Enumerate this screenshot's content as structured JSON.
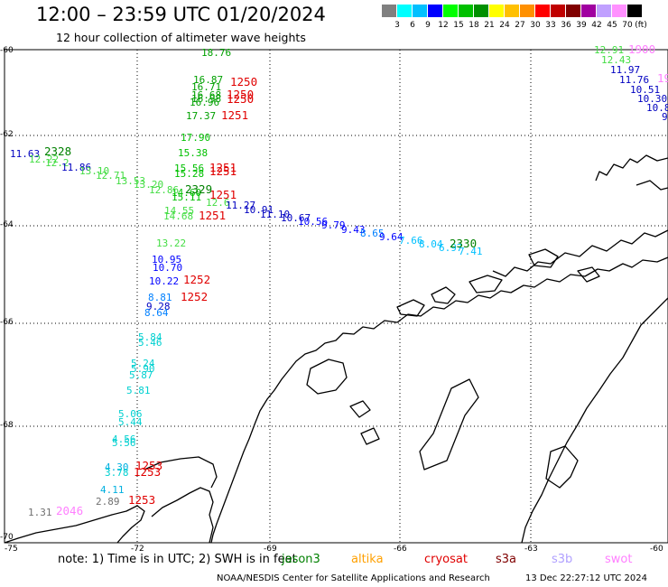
{
  "title": "12:00 – 23:59 UTC 01/20/2024",
  "subtitle": "12 hour collection of altimeter wave heights",
  "scale": {
    "unit": "(ft)",
    "colors": [
      "#808080",
      "#00ffff",
      "#00c0ff",
      "#0000ff",
      "#00ff00",
      "#00c000",
      "#009000",
      "#ffff00",
      "#ffc000",
      "#ff9000",
      "#ff0000",
      "#c00000",
      "#800000",
      "#a000a0",
      "#c0a0ff",
      "#ff90ff",
      "#000000"
    ],
    "labels": [
      "3",
      "6",
      "9",
      "12",
      "15",
      "18",
      "21",
      "24",
      "27",
      "30",
      "33",
      "36",
      "39",
      "42",
      "45",
      "70"
    ]
  },
  "axes": {
    "lat_labels": [
      "-60",
      "-62",
      "-64",
      "-66",
      "-68",
      "-70"
    ],
    "lon_labels": [
      "-75",
      "-72",
      "-69",
      "-66",
      "-63",
      "-60"
    ]
  },
  "wave_heights": [
    {
      "text": "18.76",
      "color": "#00a000"
    },
    {
      "text": "16.87",
      "color": "#00a000"
    },
    {
      "text": "16.71",
      "color": "#00a000"
    },
    {
      "text": "16.68",
      "color": "#00a000"
    },
    {
      "text": "16.96",
      "color": "#00a000"
    },
    {
      "text": "16.98",
      "color": "#00a000"
    },
    {
      "text": "17.37",
      "color": "#00a000"
    },
    {
      "text": "17.90",
      "color": "#00c000"
    },
    {
      "text": "15.38",
      "color": "#00c000"
    },
    {
      "text": "15.56",
      "color": "#00c000"
    },
    {
      "text": "15.28",
      "color": "#00c000"
    },
    {
      "text": "14.60",
      "color": "#00c000"
    },
    {
      "text": "15.11",
      "color": "#00c000"
    },
    {
      "text": "14.55",
      "color": "#44dd44"
    },
    {
      "text": "14.68",
      "color": "#44dd44"
    },
    {
      "text": "13.22",
      "color": "#44dd44"
    },
    {
      "text": "10.95",
      "color": "#0000ff"
    },
    {
      "text": "10.70",
      "color": "#0000ff"
    },
    {
      "text": "10.22",
      "color": "#0000ff"
    },
    {
      "text": "8.81",
      "color": "#0080ff"
    },
    {
      "text": "9.28",
      "color": "#0000c0"
    },
    {
      "text": "8.64",
      "color": "#0080ff"
    },
    {
      "text": "5.84",
      "color": "#00d0d0"
    },
    {
      "text": "5.46",
      "color": "#00d0d0"
    },
    {
      "text": "5.24",
      "color": "#00d0d0"
    },
    {
      "text": "5.90",
      "color": "#00d0d0"
    },
    {
      "text": "5.87",
      "color": "#00d0d0"
    },
    {
      "text": "5.81",
      "color": "#00d0d0"
    },
    {
      "text": "5.06",
      "color": "#00d0d0"
    },
    {
      "text": "5.44",
      "color": "#00d0d0"
    },
    {
      "text": "4.56",
      "color": "#00d0d0"
    },
    {
      "text": "5.56",
      "color": "#00d0d0"
    },
    {
      "text": "4.30",
      "color": "#00b0e0"
    },
    {
      "text": "3.78",
      "color": "#00d0d0"
    },
    {
      "text": "4.11",
      "color": "#00b0e0"
    },
    {
      "text": "2.89",
      "color": "#707070"
    },
    {
      "text": "1.31",
      "color": "#707070"
    },
    {
      "text": "11.63",
      "color": "#0000c0"
    },
    {
      "text": "12.22",
      "color": "#44dd44"
    },
    {
      "text": "12.2",
      "color": "#44dd44"
    },
    {
      "text": "11.86",
      "color": "#0000c0"
    },
    {
      "text": "13.10",
      "color": "#44dd44"
    },
    {
      "text": "12.71",
      "color": "#44dd44"
    },
    {
      "text": "13.53",
      "color": "#44dd44"
    },
    {
      "text": "13.20",
      "color": "#44dd44"
    },
    {
      "text": "12.86",
      "color": "#44dd44"
    },
    {
      "text": "12.6",
      "color": "#44dd44"
    },
    {
      "text": "11.27",
      "color": "#0000c0"
    },
    {
      "text": "10.91",
      "color": "#0000c0"
    },
    {
      "text": "11.10",
      "color": "#0000c0"
    },
    {
      "text": "10.67",
      "color": "#0000c0"
    },
    {
      "text": "10.56",
      "color": "#0000ff"
    },
    {
      "text": "9.79",
      "color": "#0000ff"
    },
    {
      "text": "9.43",
      "color": "#0000ff"
    },
    {
      "text": "8.65",
      "color": "#0080ff"
    },
    {
      "text": "9.64",
      "color": "#0000ff"
    },
    {
      "text": "7.66",
      "color": "#00c0ff"
    },
    {
      "text": "8.04",
      "color": "#00c0ff"
    },
    {
      "text": "6.97",
      "color": "#00c0ff"
    },
    {
      "text": "7.41",
      "color": "#00c0ff"
    },
    {
      "text": "12.91",
      "color": "#44dd44"
    },
    {
      "text": "12.43",
      "color": "#44dd44"
    },
    {
      "text": "11.97",
      "color": "#0000c0"
    },
    {
      "text": "11.76",
      "color": "#0000c0"
    },
    {
      "text": "10.51",
      "color": "#0000c0"
    },
    {
      "text": "10.30",
      "color": "#0000c0"
    },
    {
      "text": "10.8",
      "color": "#0000c0"
    },
    {
      "text": "9",
      "color": "#0000c0"
    }
  ],
  "times": [
    {
      "text": "1250",
      "color": "#e00000"
    },
    {
      "text": "1250",
      "color": "#e00000"
    },
    {
      "text": "1250",
      "color": "#e00000"
    },
    {
      "text": "1251",
      "color": "#e00000"
    },
    {
      "text": "1251",
      "color": "#e00000"
    },
    {
      "text": "1251",
      "color": "#e00000"
    },
    {
      "text": "1251",
      "color": "#e00000"
    },
    {
      "text": "2329",
      "color": "#008000"
    },
    {
      "text": "1251",
      "color": "#e00000"
    },
    {
      "text": "1252",
      "color": "#e00000"
    },
    {
      "text": "1252",
      "color": "#e00000"
    },
    {
      "text": "1253",
      "color": "#e00000"
    },
    {
      "text": "1253",
      "color": "#e00000"
    },
    {
      "text": "1253",
      "color": "#e00000"
    },
    {
      "text": "2046",
      "color": "#ff80ff"
    },
    {
      "text": "2328",
      "color": "#008000"
    },
    {
      "text": "2330",
      "color": "#008000"
    },
    {
      "text": "1900",
      "color": "#ff80ff"
    },
    {
      "text": "19",
      "color": "#ff80ff"
    }
  ],
  "note": "note:  1) Time is in UTC; 2) SWH is in feet",
  "missions": [
    {
      "name": "jason3",
      "color": "#008000"
    },
    {
      "name": "altika",
      "color": "#ffa000"
    },
    {
      "name": "cryosat",
      "color": "#e00000"
    },
    {
      "name": "s3a",
      "color": "#800000"
    },
    {
      "name": "s3b",
      "color": "#b0a0ff"
    },
    {
      "name": "swot",
      "color": "#ff80ff"
    }
  ],
  "credit": "NOAA/NESDIS Center for Satellite Applications and Research",
  "generated": "13 Dec 22:27:12 UTC 2024"
}
